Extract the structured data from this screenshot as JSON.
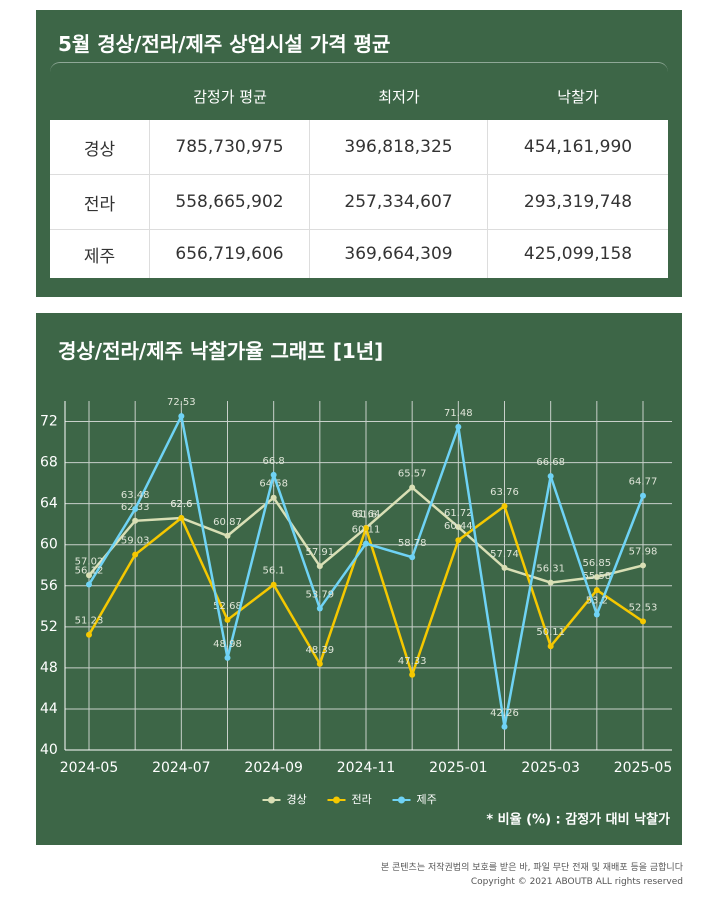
{
  "table": {
    "title": "5월 경상/전라/제주 상업시설 가격 평균",
    "header": [
      "감정가 평균",
      "최저가",
      "낙찰가"
    ],
    "rows": [
      [
        "경상",
        "785,730,975",
        "396,818,325",
        "454,161,990"
      ],
      [
        "전라",
        "558,665,902",
        "257,334,607",
        "293,319,748"
      ],
      [
        "제주",
        "656,719,606",
        "369,664,309",
        "425,099,158"
      ]
    ]
  },
  "chart_data": {
    "type": "line",
    "title": "경상/전라/제주 낙찰가율 그래프 [1년]",
    "categories": [
      "2024-05",
      null,
      "2024-07",
      null,
      "2024-09",
      null,
      "2024-11",
      null,
      "2025-01",
      null,
      "2025-03",
      null,
      "2025-05"
    ],
    "series": [
      {
        "name": "경상",
        "color": "#d9dfb5",
        "values": [
          57.02,
          62.33,
          62.6,
          60.87,
          64.58,
          57.91,
          61.64,
          65.57,
          61.72,
          57.74,
          56.31,
          56.85,
          57.98
        ]
      },
      {
        "name": "전라",
        "color": "#f5c800",
        "values": [
          51.23,
          59.03,
          62.6,
          52.68,
          56.1,
          48.39,
          61.6,
          47.33,
          60.44,
          63.76,
          50.11,
          55.58,
          52.53
        ]
      },
      {
        "name": "제주",
        "color": "#6fd3f5",
        "values": [
          56.12,
          63.48,
          72.53,
          48.98,
          66.8,
          53.79,
          60.11,
          58.78,
          71.48,
          42.26,
          66.68,
          53.2,
          64.77
        ]
      }
    ],
    "ylim": [
      40,
      74
    ],
    "yticks": [
      40,
      44,
      48,
      52,
      56,
      60,
      64,
      68,
      72
    ],
    "grid": true,
    "legend": "bottom",
    "note": "* 비율 (%) : 감정가 대비 낙찰가"
  },
  "footer": {
    "lines": [
      "본 콘텐츠는 저작권법의 보호를 받은 바, 파일 무단 전재 및 재배포 등을 금합니다",
      "Copyright © 2021 ABOUTB ALL rights reserved"
    ]
  }
}
